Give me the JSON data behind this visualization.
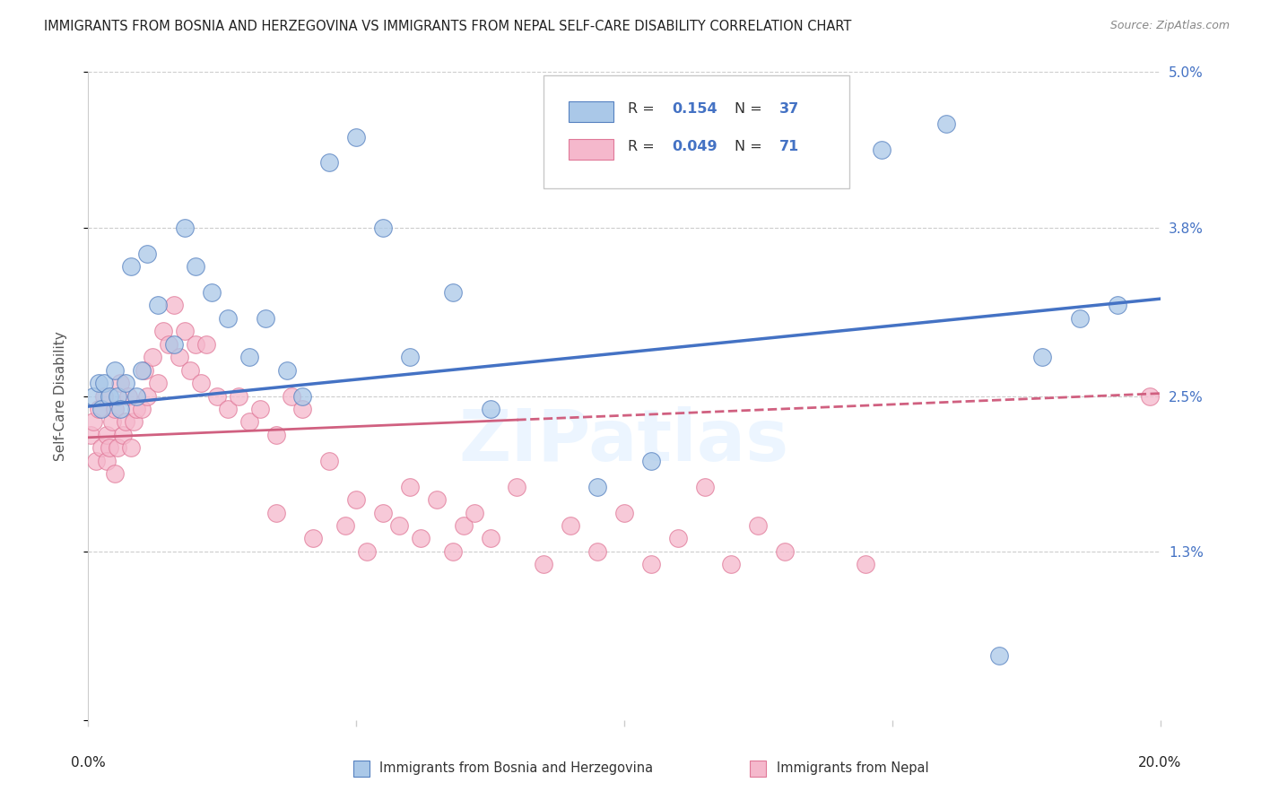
{
  "title": "IMMIGRANTS FROM BOSNIA AND HERZEGOVINA VS IMMIGRANTS FROM NEPAL SELF-CARE DISABILITY CORRELATION CHART",
  "source": "Source: ZipAtlas.com",
  "ylabel": "Self-Care Disability",
  "xmin": 0.0,
  "xmax": 20.0,
  "ymin": 0.0,
  "ymax": 5.0,
  "bosnia_R": 0.154,
  "bosnia_N": 37,
  "nepal_R": 0.049,
  "nepal_N": 71,
  "bosnia_color": "#aac8e8",
  "nepal_color": "#f5b8cc",
  "bosnia_edge_color": "#5580c0",
  "nepal_edge_color": "#e07898",
  "bosnia_line_color": "#4472c4",
  "nepal_line_color": "#d06080",
  "right_yticklabels": [
    "",
    "1.3%",
    "2.5%",
    "3.8%",
    "5.0%"
  ],
  "grid_color": "#cccccc",
  "bosnia_x": [
    0.1,
    0.2,
    0.25,
    0.3,
    0.4,
    0.5,
    0.55,
    0.6,
    0.7,
    0.8,
    0.9,
    1.0,
    1.1,
    1.3,
    1.6,
    1.8,
    2.0,
    2.3,
    2.6,
    3.0,
    3.3,
    3.7,
    4.0,
    4.5,
    5.0,
    5.5,
    6.0,
    6.8,
    7.5,
    9.5,
    10.5,
    14.8,
    16.0,
    17.0,
    17.8,
    18.5,
    19.2
  ],
  "bosnia_y": [
    2.5,
    2.6,
    2.4,
    2.6,
    2.5,
    2.7,
    2.5,
    2.4,
    2.6,
    3.5,
    2.5,
    2.7,
    3.6,
    3.2,
    2.9,
    3.8,
    3.5,
    3.3,
    3.1,
    2.8,
    3.1,
    2.7,
    2.5,
    4.3,
    4.5,
    3.8,
    2.8,
    3.3,
    2.4,
    1.8,
    2.0,
    4.4,
    4.6,
    0.5,
    2.8,
    3.1,
    3.2
  ],
  "nepal_x": [
    0.05,
    0.1,
    0.15,
    0.2,
    0.25,
    0.3,
    0.35,
    0.35,
    0.4,
    0.45,
    0.5,
    0.5,
    0.55,
    0.6,
    0.65,
    0.7,
    0.75,
    0.8,
    0.85,
    0.9,
    1.0,
    1.05,
    1.1,
    1.2,
    1.3,
    1.4,
    1.5,
    1.6,
    1.7,
    1.8,
    1.9,
    2.0,
    2.1,
    2.2,
    2.4,
    2.6,
    2.8,
    3.0,
    3.2,
    3.5,
    3.5,
    3.8,
    4.0,
    4.2,
    4.5,
    4.8,
    5.0,
    5.2,
    5.5,
    5.8,
    6.0,
    6.2,
    6.5,
    6.8,
    7.0,
    7.2,
    7.5,
    8.0,
    8.5,
    9.0,
    9.5,
    10.0,
    10.5,
    11.0,
    11.5,
    12.0,
    12.5,
    13.0,
    14.5,
    19.8,
    10.5
  ],
  "nepal_y": [
    2.2,
    2.3,
    2.0,
    2.4,
    2.1,
    2.5,
    2.2,
    2.0,
    2.1,
    2.3,
    1.9,
    2.4,
    2.1,
    2.6,
    2.2,
    2.3,
    2.5,
    2.1,
    2.3,
    2.4,
    2.4,
    2.7,
    2.5,
    2.8,
    2.6,
    3.0,
    2.9,
    3.2,
    2.8,
    3.0,
    2.7,
    2.9,
    2.6,
    2.9,
    2.5,
    2.4,
    2.5,
    2.3,
    2.4,
    2.2,
    1.6,
    2.5,
    2.4,
    1.4,
    2.0,
    1.5,
    1.7,
    1.3,
    1.6,
    1.5,
    1.8,
    1.4,
    1.7,
    1.3,
    1.5,
    1.6,
    1.4,
    1.8,
    1.2,
    1.5,
    1.3,
    1.6,
    1.2,
    1.4,
    1.8,
    1.2,
    1.5,
    1.3,
    1.2,
    2.5,
    4.7
  ],
  "bosnia_line_x0": 0.0,
  "bosnia_line_y0": 2.42,
  "bosnia_line_x1": 20.0,
  "bosnia_line_y1": 3.25,
  "nepal_line_x0": 0.0,
  "nepal_line_y0": 2.18,
  "nepal_line_x1": 20.0,
  "nepal_line_y1": 2.52,
  "nepal_solid_end": 8.0,
  "nepal_dash_start": 8.0
}
